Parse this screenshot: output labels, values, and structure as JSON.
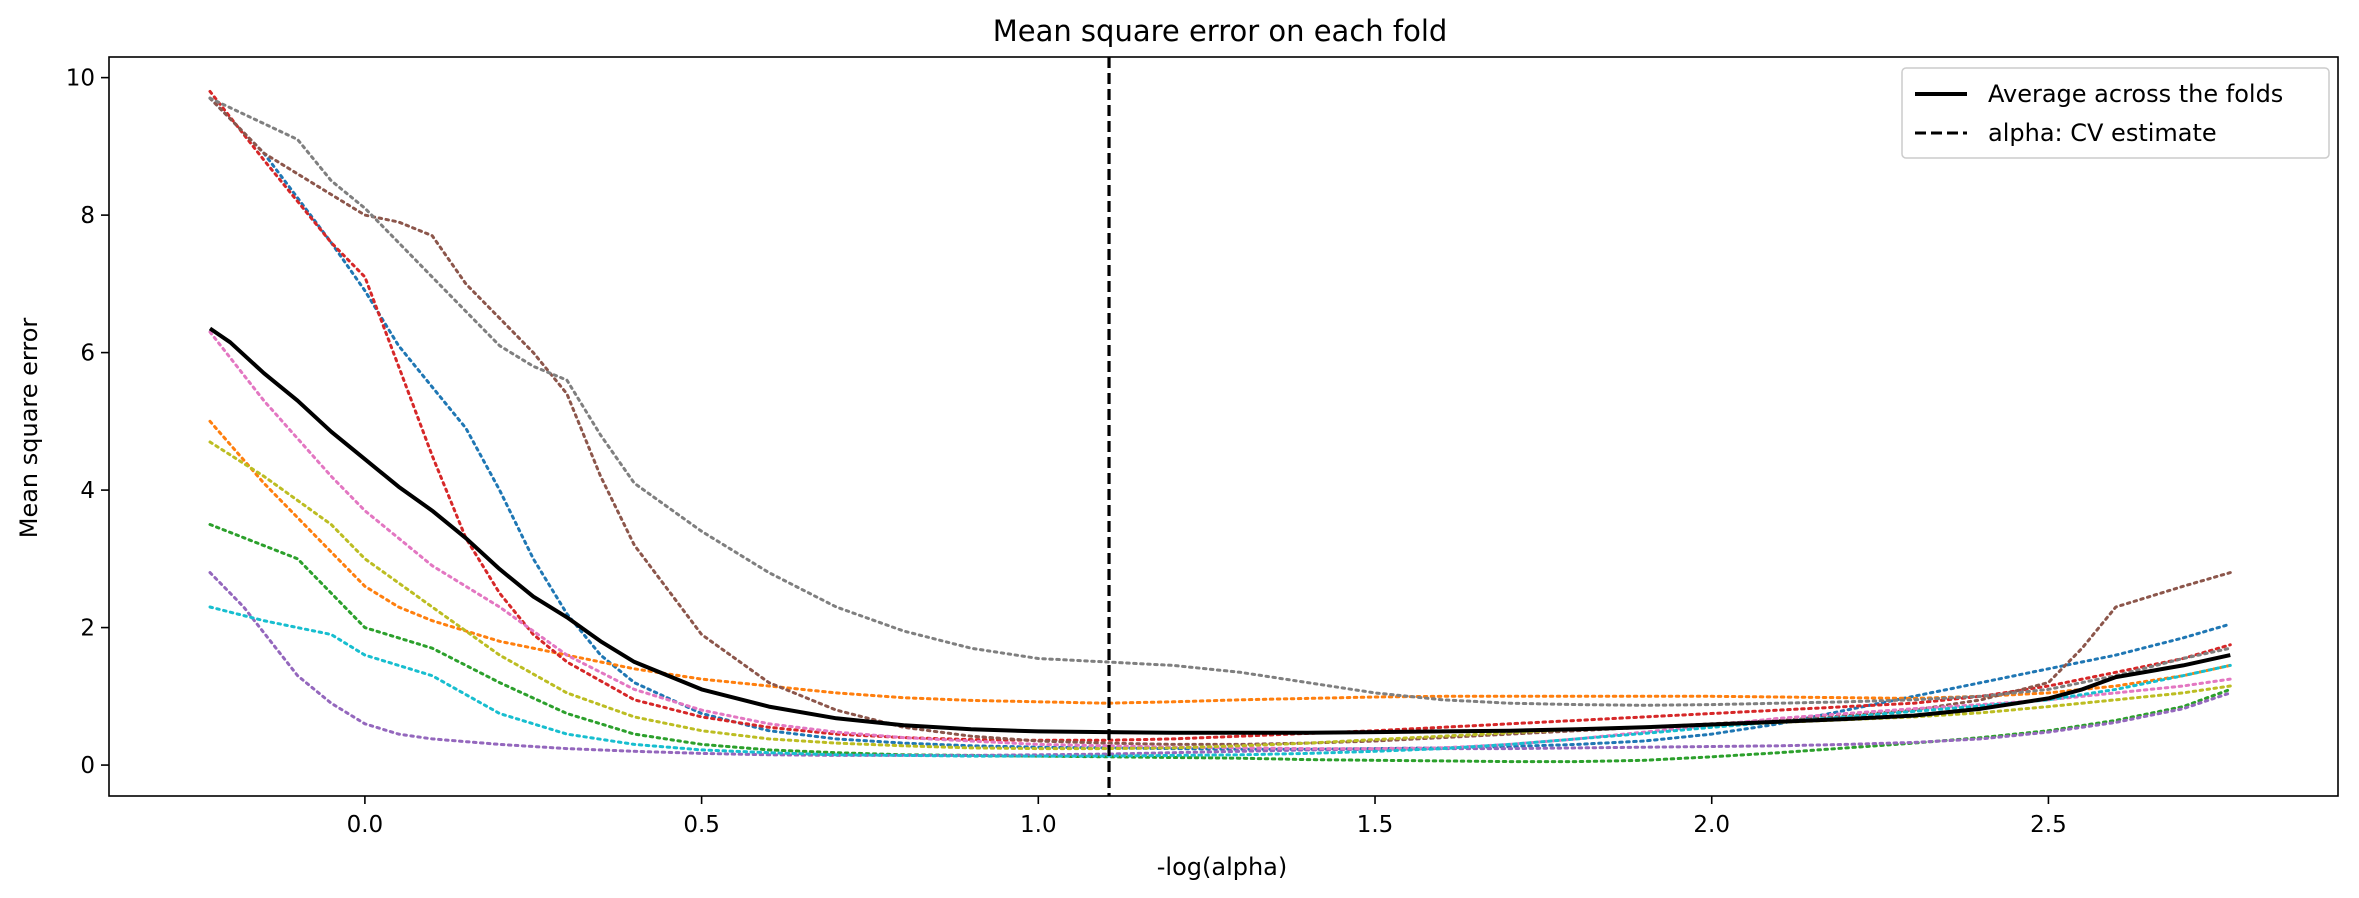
{
  "chart_data": {
    "type": "line",
    "title": "Mean square error on each fold",
    "xlabel": "-log(alpha)",
    "ylabel": "Mean square error",
    "xlim": [
      -0.38,
      2.93
    ],
    "ylim": [
      -0.45,
      10.3
    ],
    "xticks": [
      0.0,
      0.5,
      1.0,
      1.5,
      2.0,
      2.5
    ],
    "xtick_labels": [
      "0.0",
      "0.5",
      "1.0",
      "1.5",
      "2.0",
      "2.5"
    ],
    "yticks": [
      0,
      2,
      4,
      6,
      8,
      10
    ],
    "ytick_labels": [
      "0",
      "2",
      "4",
      "6",
      "8",
      "10"
    ],
    "grid": false,
    "legend": {
      "position": "top-right",
      "entries": [
        {
          "label": "Average across the folds",
          "style": "solid",
          "color": "#000000"
        },
        {
          "label": "alpha: CV estimate",
          "style": "dashed",
          "color": "#000000"
        }
      ]
    },
    "vline": {
      "x": 1.105,
      "style": "dashed",
      "color": "#000000"
    },
    "series": [
      {
        "color": "#1f77b4",
        "style": "dotted",
        "x": [
          -0.23,
          -0.15,
          -0.05,
          0.0,
          0.05,
          0.1,
          0.15,
          0.2,
          0.25,
          0.3,
          0.35,
          0.4,
          0.5,
          0.6,
          0.7,
          0.8,
          0.9,
          1.0,
          1.1,
          1.2,
          1.3,
          1.4,
          1.5,
          1.6,
          1.7,
          1.8,
          1.9,
          2.0,
          2.1,
          2.2,
          2.3,
          2.4,
          2.5,
          2.6,
          2.7,
          2.77
        ],
        "y": [
          9.7,
          8.9,
          7.6,
          6.9,
          6.1,
          5.5,
          4.9,
          4.0,
          3.0,
          2.2,
          1.6,
          1.2,
          0.75,
          0.5,
          0.38,
          0.32,
          0.28,
          0.26,
          0.25,
          0.24,
          0.23,
          0.23,
          0.24,
          0.25,
          0.27,
          0.3,
          0.35,
          0.45,
          0.6,
          0.8,
          1.0,
          1.2,
          1.4,
          1.6,
          1.85,
          2.05
        ]
      },
      {
        "color": "#ff7f0e",
        "style": "dotted",
        "x": [
          -0.23,
          -0.15,
          -0.05,
          0.0,
          0.05,
          0.1,
          0.15,
          0.2,
          0.3,
          0.4,
          0.5,
          0.6,
          0.7,
          0.8,
          0.9,
          1.0,
          1.1,
          1.2,
          1.3,
          1.4,
          1.5,
          1.6,
          1.7,
          1.8,
          1.9,
          2.0,
          2.1,
          2.2,
          2.3,
          2.4,
          2.5,
          2.6,
          2.7,
          2.77
        ],
        "y": [
          5.0,
          4.1,
          3.1,
          2.6,
          2.3,
          2.1,
          1.95,
          1.8,
          1.6,
          1.4,
          1.25,
          1.15,
          1.05,
          0.98,
          0.94,
          0.92,
          0.9,
          0.92,
          0.95,
          0.97,
          0.99,
          1.0,
          1.0,
          1.0,
          1.0,
          1.0,
          0.99,
          0.98,
          0.97,
          1.0,
          1.05,
          1.15,
          1.3,
          1.45
        ]
      },
      {
        "color": "#2ca02c",
        "style": "dotted",
        "x": [
          -0.23,
          -0.1,
          0.0,
          0.1,
          0.2,
          0.3,
          0.4,
          0.5,
          0.6,
          0.7,
          0.8,
          0.9,
          1.0,
          1.1,
          1.2,
          1.3,
          1.4,
          1.5,
          1.6,
          1.7,
          1.8,
          1.9,
          2.0,
          2.1,
          2.2,
          2.3,
          2.4,
          2.5,
          2.6,
          2.7,
          2.77
        ],
        "y": [
          3.5,
          3.0,
          2.0,
          1.7,
          1.2,
          0.75,
          0.45,
          0.3,
          0.22,
          0.18,
          0.15,
          0.14,
          0.13,
          0.12,
          0.11,
          0.1,
          0.08,
          0.07,
          0.06,
          0.05,
          0.05,
          0.07,
          0.12,
          0.18,
          0.25,
          0.32,
          0.4,
          0.5,
          0.65,
          0.85,
          1.1
        ]
      },
      {
        "color": "#d62728",
        "style": "dotted",
        "x": [
          -0.23,
          -0.15,
          -0.05,
          0.0,
          0.05,
          0.1,
          0.15,
          0.2,
          0.25,
          0.3,
          0.4,
          0.5,
          0.6,
          0.7,
          0.8,
          0.9,
          1.0,
          1.1,
          1.2,
          1.3,
          1.4,
          1.5,
          1.6,
          1.7,
          1.8,
          1.9,
          2.0,
          2.1,
          2.2,
          2.3,
          2.4,
          2.5,
          2.6,
          2.7,
          2.77
        ],
        "y": [
          9.8,
          8.8,
          7.6,
          7.1,
          5.8,
          4.5,
          3.3,
          2.5,
          1.9,
          1.5,
          0.95,
          0.7,
          0.55,
          0.45,
          0.4,
          0.37,
          0.36,
          0.36,
          0.38,
          0.42,
          0.46,
          0.5,
          0.55,
          0.6,
          0.65,
          0.7,
          0.75,
          0.8,
          0.85,
          0.9,
          1.0,
          1.15,
          1.35,
          1.55,
          1.75
        ]
      },
      {
        "color": "#9467bd",
        "style": "dotted",
        "x": [
          -0.23,
          -0.18,
          -0.1,
          -0.05,
          0.0,
          0.05,
          0.1,
          0.2,
          0.3,
          0.4,
          0.5,
          0.6,
          0.7,
          0.8,
          0.9,
          1.0,
          1.1,
          1.2,
          1.3,
          1.4,
          1.5,
          1.6,
          1.7,
          1.8,
          1.9,
          2.0,
          2.1,
          2.2,
          2.3,
          2.4,
          2.5,
          2.6,
          2.7,
          2.77
        ],
        "y": [
          2.8,
          2.3,
          1.3,
          0.9,
          0.6,
          0.45,
          0.38,
          0.3,
          0.24,
          0.2,
          0.17,
          0.15,
          0.14,
          0.14,
          0.14,
          0.15,
          0.16,
          0.18,
          0.2,
          0.22,
          0.23,
          0.24,
          0.24,
          0.25,
          0.26,
          0.27,
          0.28,
          0.3,
          0.33,
          0.38,
          0.48,
          0.62,
          0.82,
          1.05
        ]
      },
      {
        "color": "#8c564b",
        "style": "dotted",
        "x": [
          -0.23,
          -0.15,
          -0.05,
          0.0,
          0.05,
          0.1,
          0.15,
          0.2,
          0.25,
          0.3,
          0.35,
          0.4,
          0.5,
          0.6,
          0.7,
          0.8,
          0.9,
          1.0,
          1.1,
          1.2,
          1.3,
          1.4,
          1.5,
          1.6,
          1.7,
          1.8,
          1.9,
          2.0,
          2.1,
          2.2,
          2.3,
          2.4,
          2.5,
          2.55,
          2.6,
          2.7,
          2.77
        ],
        "y": [
          9.7,
          8.9,
          8.3,
          8.0,
          7.9,
          7.7,
          7.0,
          6.5,
          6.0,
          5.4,
          4.2,
          3.2,
          1.9,
          1.2,
          0.8,
          0.55,
          0.42,
          0.35,
          0.32,
          0.3,
          0.3,
          0.32,
          0.35,
          0.4,
          0.45,
          0.5,
          0.55,
          0.6,
          0.65,
          0.72,
          0.8,
          0.95,
          1.2,
          1.7,
          2.3,
          2.6,
          2.8
        ]
      },
      {
        "color": "#e377c2",
        "style": "dotted",
        "x": [
          -0.23,
          -0.15,
          -0.05,
          0.0,
          0.05,
          0.1,
          0.2,
          0.3,
          0.4,
          0.5,
          0.6,
          0.7,
          0.8,
          0.9,
          1.0,
          1.1,
          1.2,
          1.3,
          1.4,
          1.5,
          1.6,
          1.7,
          1.8,
          1.9,
          2.0,
          2.1,
          2.2,
          2.3,
          2.4,
          2.5,
          2.6,
          2.7,
          2.77
        ],
        "y": [
          6.3,
          5.3,
          4.2,
          3.7,
          3.3,
          2.9,
          2.3,
          1.6,
          1.1,
          0.8,
          0.6,
          0.48,
          0.4,
          0.35,
          0.3,
          0.28,
          0.26,
          0.25,
          0.24,
          0.24,
          0.25,
          0.3,
          0.38,
          0.48,
          0.58,
          0.68,
          0.75,
          0.82,
          0.88,
          0.95,
          1.05,
          1.15,
          1.25
        ]
      },
      {
        "color": "#7f7f7f",
        "style": "dotted",
        "x": [
          -0.23,
          -0.1,
          -0.05,
          0.0,
          0.05,
          0.1,
          0.15,
          0.2,
          0.25,
          0.3,
          0.35,
          0.4,
          0.5,
          0.6,
          0.7,
          0.8,
          0.9,
          1.0,
          1.1,
          1.2,
          1.3,
          1.4,
          1.5,
          1.6,
          1.7,
          1.8,
          1.9,
          2.0,
          2.1,
          2.2,
          2.3,
          2.4,
          2.5,
          2.6,
          2.7,
          2.77
        ],
        "y": [
          9.7,
          9.1,
          8.5,
          8.1,
          7.6,
          7.1,
          6.6,
          6.1,
          5.8,
          5.6,
          4.8,
          4.1,
          3.4,
          2.8,
          2.3,
          1.95,
          1.7,
          1.55,
          1.5,
          1.45,
          1.35,
          1.2,
          1.05,
          0.95,
          0.9,
          0.88,
          0.87,
          0.88,
          0.9,
          0.92,
          0.95,
          1.0,
          1.1,
          1.3,
          1.55,
          1.7
        ]
      },
      {
        "color": "#bcbd22",
        "style": "dotted",
        "x": [
          -0.23,
          -0.15,
          -0.05,
          0.0,
          0.1,
          0.2,
          0.3,
          0.4,
          0.5,
          0.6,
          0.7,
          0.8,
          0.9,
          1.0,
          1.1,
          1.2,
          1.3,
          1.4,
          1.5,
          1.6,
          1.7,
          1.8,
          1.9,
          2.0,
          2.1,
          2.2,
          2.3,
          2.4,
          2.5,
          2.6,
          2.7,
          2.77
        ],
        "y": [
          4.7,
          4.2,
          3.5,
          3.0,
          2.3,
          1.6,
          1.05,
          0.7,
          0.5,
          0.38,
          0.32,
          0.28,
          0.25,
          0.24,
          0.24,
          0.25,
          0.28,
          0.32,
          0.37,
          0.42,
          0.47,
          0.52,
          0.55,
          0.58,
          0.62,
          0.66,
          0.7,
          0.76,
          0.85,
          0.95,
          1.05,
          1.15
        ]
      },
      {
        "color": "#17becf",
        "style": "dotted",
        "x": [
          -0.23,
          -0.15,
          -0.05,
          0.0,
          0.1,
          0.2,
          0.3,
          0.4,
          0.5,
          0.6,
          0.7,
          0.8,
          0.9,
          1.0,
          1.1,
          1.2,
          1.3,
          1.4,
          1.5,
          1.6,
          1.7,
          1.8,
          1.9,
          2.0,
          2.1,
          2.2,
          2.3,
          2.4,
          2.5,
          2.6,
          2.7,
          2.77
        ],
        "y": [
          2.3,
          2.1,
          1.9,
          1.6,
          1.3,
          0.75,
          0.45,
          0.3,
          0.22,
          0.18,
          0.15,
          0.14,
          0.13,
          0.13,
          0.13,
          0.14,
          0.15,
          0.17,
          0.2,
          0.24,
          0.3,
          0.38,
          0.46,
          0.55,
          0.63,
          0.7,
          0.78,
          0.86,
          0.95,
          1.1,
          1.3,
          1.45
        ]
      },
      {
        "color": "#000000",
        "style": "solid",
        "average": true,
        "x": [
          -0.23,
          -0.2,
          -0.15,
          -0.1,
          -0.05,
          0.0,
          0.05,
          0.1,
          0.15,
          0.2,
          0.25,
          0.3,
          0.35,
          0.4,
          0.5,
          0.6,
          0.7,
          0.8,
          0.9,
          1.0,
          1.1,
          1.2,
          1.3,
          1.4,
          1.5,
          1.6,
          1.7,
          1.8,
          1.9,
          2.0,
          2.1,
          2.2,
          2.3,
          2.4,
          2.5,
          2.55,
          2.6,
          2.7,
          2.77
        ],
        "y": [
          6.35,
          6.15,
          5.7,
          5.3,
          4.85,
          4.45,
          4.05,
          3.7,
          3.3,
          2.85,
          2.45,
          2.15,
          1.8,
          1.5,
          1.1,
          0.85,
          0.68,
          0.58,
          0.52,
          0.49,
          0.48,
          0.47,
          0.47,
          0.47,
          0.48,
          0.49,
          0.5,
          0.52,
          0.55,
          0.59,
          0.63,
          0.67,
          0.72,
          0.82,
          0.97,
          1.1,
          1.28,
          1.45,
          1.6
        ]
      }
    ]
  }
}
